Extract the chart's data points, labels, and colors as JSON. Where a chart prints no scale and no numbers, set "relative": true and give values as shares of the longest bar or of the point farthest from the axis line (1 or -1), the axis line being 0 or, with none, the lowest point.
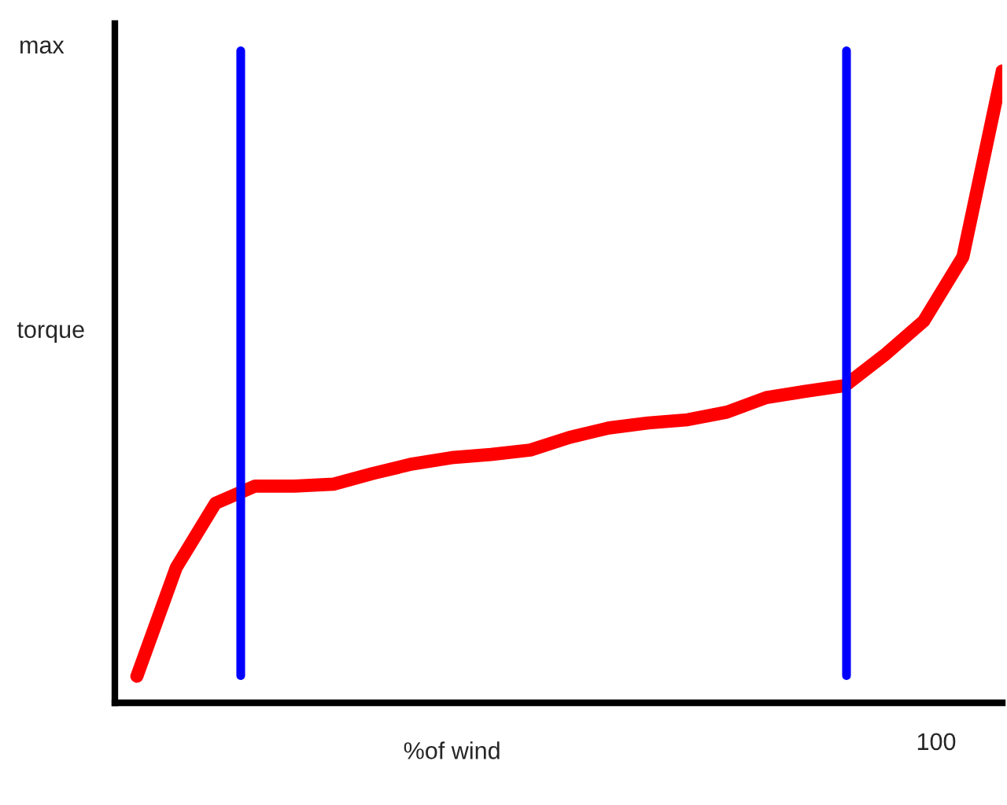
{
  "chart_data": {
    "type": "line",
    "relative": true,
    "xlabel": "%of wind",
    "ylabel": "torque",
    "annotations": [
      "max",
      "100"
    ],
    "categories": [
      null,
      null,
      null,
      null,
      null,
      null,
      null,
      null,
      null,
      null,
      null,
      null,
      null,
      null,
      null,
      null,
      null,
      null,
      null,
      null,
      null,
      null,
      null
    ],
    "series": [
      {
        "color": "#ff0000",
        "values": [
          0.042,
          0.214,
          0.316,
          0.343,
          0.343,
          0.346,
          0.363,
          0.378,
          0.388,
          0.393,
          0.4,
          0.42,
          0.435,
          0.443,
          0.448,
          0.46,
          0.483,
          0.493,
          0.502,
          0.55,
          0.604,
          0.706,
          1.0
        ]
      }
    ],
    "legend": false,
    "marker": "none",
    "line_style": "solid"
  }
}
